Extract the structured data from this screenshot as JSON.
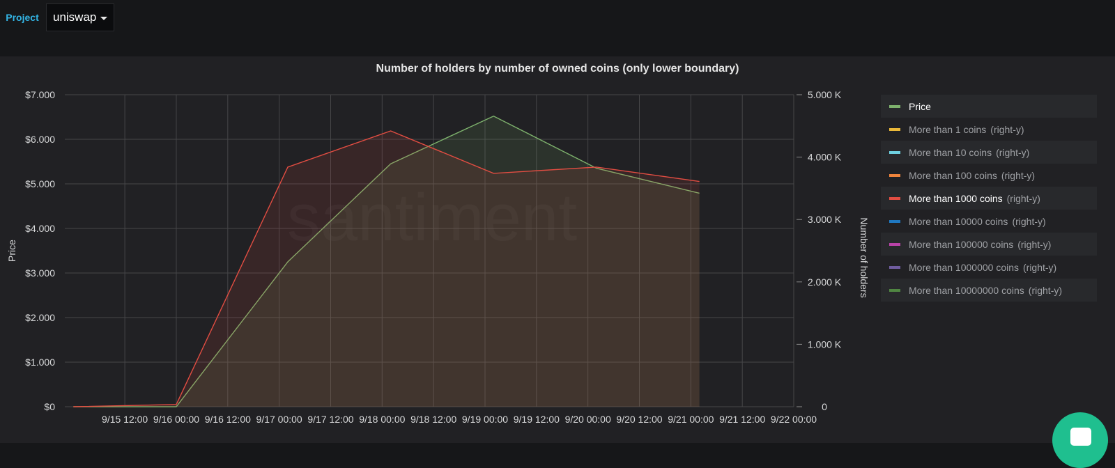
{
  "variable": {
    "label": "Project",
    "value": "uniswap"
  },
  "panel": {
    "title": "Number of holders by number of owned coins (only lower boundary)",
    "watermark": "santiment"
  },
  "legend": [
    {
      "name": "Price",
      "axis": "",
      "color": "#7eb26d",
      "active": true
    },
    {
      "name": "More than 1 coins",
      "axis": "(right-y)",
      "color": "#eab839",
      "active": false
    },
    {
      "name": "More than 10 coins",
      "axis": "(right-y)",
      "color": "#6ed0e0",
      "active": false
    },
    {
      "name": "More than 100 coins",
      "axis": "(right-y)",
      "color": "#ef843c",
      "active": false
    },
    {
      "name": "More than 1000 coins",
      "axis": "(right-y)",
      "color": "#e24d42",
      "active": true
    },
    {
      "name": "More than 10000 coins",
      "axis": "(right-y)",
      "color": "#1f78c1",
      "active": false
    },
    {
      "name": "More than 100000 coins",
      "axis": "(right-y)",
      "color": "#ba43a9",
      "active": false
    },
    {
      "name": "More than 1000000 coins",
      "axis": "(right-y)",
      "color": "#705da0",
      "active": false
    },
    {
      "name": "More than 10000000 coins",
      "axis": "(right-y)",
      "color": "#508642",
      "active": false
    }
  ],
  "chart_data": {
    "type": "area",
    "title": "Number of holders by number of owned coins (only lower boundary)",
    "x_ticks": [
      "9/15 12:00",
      "9/16 00:00",
      "9/16 12:00",
      "9/17 00:00",
      "9/17 12:00",
      "9/18 00:00",
      "9/18 12:00",
      "9/19 00:00",
      "9/19 12:00",
      "9/20 00:00",
      "9/20 12:00",
      "9/21 00:00",
      "9/21 12:00",
      "9/22 00:00"
    ],
    "x_tick_hours": [
      12,
      24,
      36,
      48,
      60,
      72,
      84,
      96,
      108,
      120,
      132,
      144,
      156,
      168
    ],
    "x_range_hours": [
      -2,
      168
    ],
    "y_left": {
      "label": "Price",
      "ticks": [
        "$0",
        "$1.000",
        "$2.000",
        "$3.000",
        "$4.000",
        "$5.000",
        "$6.000",
        "$7.000"
      ],
      "range": [
        0,
        7000
      ]
    },
    "y_right": {
      "label": "Number of holders",
      "ticks": [
        "0",
        "1.000 K",
        "2.000 K",
        "3.000 K",
        "4.000 K",
        "5.000 K"
      ],
      "range": [
        0,
        5000
      ]
    },
    "grid": true,
    "legend_position": "right",
    "series": [
      {
        "name": "Price",
        "axis": "left",
        "color": "#7eb26d",
        "x_hours": [
          0,
          24,
          50,
          74,
          98,
          122,
          146
        ],
        "values": [
          0,
          0,
          3250,
          5450,
          6520,
          5350,
          4790
        ]
      },
      {
        "name": "More than 1000 coins",
        "axis": "right",
        "color": "#e24d42",
        "x_hours": [
          0,
          24,
          50,
          74,
          98,
          122,
          146
        ],
        "values": [
          0,
          35,
          3840,
          4420,
          3740,
          3840,
          3610
        ]
      }
    ]
  }
}
